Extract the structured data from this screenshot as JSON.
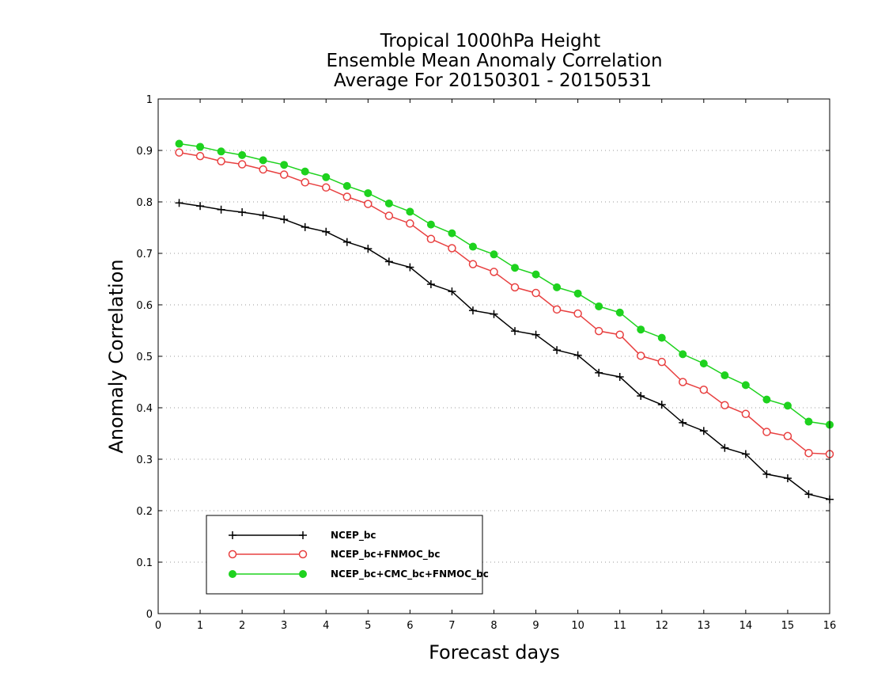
{
  "chart_data": {
    "type": "line",
    "title": [
      "Tropical 1000hPa Height",
      "Ensemble Mean Anomaly Correlation",
      "Average For 20150301 - 20150531"
    ],
    "xlabel": "Forecast days",
    "ylabel": "Anomaly Correlation",
    "xlim": [
      0,
      16
    ],
    "ylim": [
      0,
      1
    ],
    "x_ticks": [
      0,
      1,
      2,
      3,
      4,
      5,
      6,
      7,
      8,
      9,
      10,
      11,
      12,
      13,
      14,
      15,
      16
    ],
    "y_ticks": [
      0,
      0.1,
      0.2,
      0.3,
      0.4,
      0.5,
      0.6,
      0.7,
      0.8,
      0.9,
      1
    ],
    "y_tick_labels": [
      "0",
      "0.1",
      "0.2",
      "0.3",
      "0.4",
      "0.5",
      "0.6",
      "0.7",
      "0.8",
      "0.9",
      "1"
    ],
    "grid": "horizontal dotted",
    "legend_position": "bottom-left",
    "x": [
      0.5,
      1,
      1.5,
      2,
      2.5,
      3,
      3.5,
      4,
      4.5,
      5,
      5.5,
      6,
      6.5,
      7,
      7.5,
      8,
      8.5,
      9,
      9.5,
      10,
      10.5,
      11,
      11.5,
      12,
      12.5,
      13,
      13.5,
      14,
      14.5,
      15,
      15.5,
      16
    ],
    "series": [
      {
        "name": "NCEP_bc",
        "color": "#000000",
        "marker": "plus",
        "values": [
          0.798,
          0.792,
          0.785,
          0.78,
          0.774,
          0.766,
          0.751,
          0.742,
          0.722,
          0.709,
          0.684,
          0.673,
          0.64,
          0.626,
          0.589,
          0.582,
          0.549,
          0.542,
          0.512,
          0.502,
          0.468,
          0.46,
          0.423,
          0.406,
          0.371,
          0.355,
          0.322,
          0.31,
          0.271,
          0.263,
          0.232,
          0.222
        ]
      },
      {
        "name": "NCEP_bc+FNMOC_bc",
        "color": "#e84040",
        "marker": "open-circle",
        "values": [
          0.896,
          0.889,
          0.879,
          0.873,
          0.863,
          0.853,
          0.838,
          0.828,
          0.81,
          0.796,
          0.773,
          0.758,
          0.728,
          0.71,
          0.679,
          0.664,
          0.634,
          0.623,
          0.591,
          0.583,
          0.549,
          0.542,
          0.501,
          0.489,
          0.45,
          0.435,
          0.405,
          0.388,
          0.353,
          0.345,
          0.312,
          0.31
        ]
      },
      {
        "name": "NCEP_bc+CMC_bc+FNMOC_bc",
        "color": "#1ed21e",
        "marker": "filled-circle",
        "values": [
          0.913,
          0.907,
          0.898,
          0.891,
          0.881,
          0.872,
          0.859,
          0.848,
          0.831,
          0.817,
          0.797,
          0.781,
          0.756,
          0.739,
          0.713,
          0.698,
          0.672,
          0.659,
          0.634,
          0.622,
          0.597,
          0.585,
          0.552,
          0.536,
          0.504,
          0.486,
          0.463,
          0.444,
          0.416,
          0.404,
          0.373,
          0.367
        ]
      }
    ]
  }
}
